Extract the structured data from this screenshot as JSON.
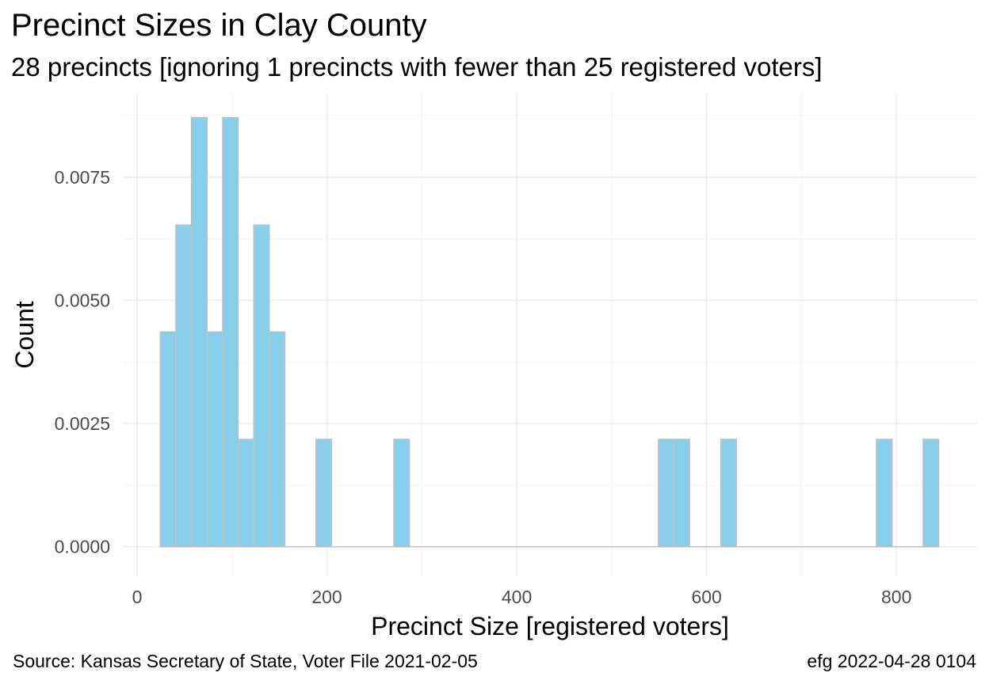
{
  "title": "Precinct Sizes in Clay County",
  "subtitle": "28 precincts [ignoring 1 precincts with fewer than 25 registered voters]",
  "caption_left": "Source:  Kansas Secretary of State, Voter File  2021-02-05",
  "caption_right": "efg 2022-04-28 0104",
  "colors": {
    "bar_fill": "#87ceeb",
    "bar_stroke": "#c0c0c0",
    "grid_major": "#ebebeb",
    "grid_minor": "#f5f5f5",
    "tick_text": "#4d4d4d"
  },
  "chart_data": {
    "type": "bar",
    "chart_kind": "histogram",
    "xlabel": "Precinct Size [registered voters]",
    "ylabel": "Count",
    "xlim": [
      -15,
      885
    ],
    "ylim": [
      -0.0006,
      0.0092
    ],
    "x_ticks": [
      0,
      200,
      400,
      600,
      800
    ],
    "x_tick_labels": [
      "0",
      "200",
      "400",
      "600",
      "800"
    ],
    "y_ticks": [
      0,
      0.0025,
      0.005,
      0.0075
    ],
    "y_tick_labels": [
      "0.0000",
      "0.0025",
      "0.0050",
      "0.0075"
    ],
    "grid": true,
    "bin_width": 16.4,
    "bins": [
      {
        "x0": 24.5,
        "x1": 40.9,
        "value": 0.00436
      },
      {
        "x0": 40.9,
        "x1": 57.3,
        "value": 0.00653
      },
      {
        "x0": 57.3,
        "x1": 73.7,
        "value": 0.00871
      },
      {
        "x0": 73.7,
        "x1": 90.1,
        "value": 0.00436
      },
      {
        "x0": 90.1,
        "x1": 106.5,
        "value": 0.00871
      },
      {
        "x0": 106.5,
        "x1": 122.9,
        "value": 0.00218
      },
      {
        "x0": 122.9,
        "x1": 139.3,
        "value": 0.00653
      },
      {
        "x0": 139.3,
        "x1": 155.7,
        "value": 0.00436
      },
      {
        "x0": 155.7,
        "x1": 188.5,
        "value": 0
      },
      {
        "x0": 188.5,
        "x1": 204.9,
        "value": 0.00218
      },
      {
        "x0": 204.9,
        "x1": 270.5,
        "value": 0
      },
      {
        "x0": 270.5,
        "x1": 286.9,
        "value": 0.00218
      },
      {
        "x0": 286.9,
        "x1": 549.3,
        "value": 0
      },
      {
        "x0": 549.3,
        "x1": 565.7,
        "value": 0.00218
      },
      {
        "x0": 565.7,
        "x1": 582.1,
        "value": 0.00218
      },
      {
        "x0": 582.1,
        "x1": 615.0,
        "value": 0
      },
      {
        "x0": 615.0,
        "x1": 631.4,
        "value": 0.00218
      },
      {
        "x0": 631.4,
        "x1": 779.0,
        "value": 0
      },
      {
        "x0": 779.0,
        "x1": 795.4,
        "value": 0.00218
      },
      {
        "x0": 795.4,
        "x1": 828.2,
        "value": 0
      },
      {
        "x0": 828.2,
        "x1": 844.6,
        "value": 0.00218
      }
    ]
  }
}
